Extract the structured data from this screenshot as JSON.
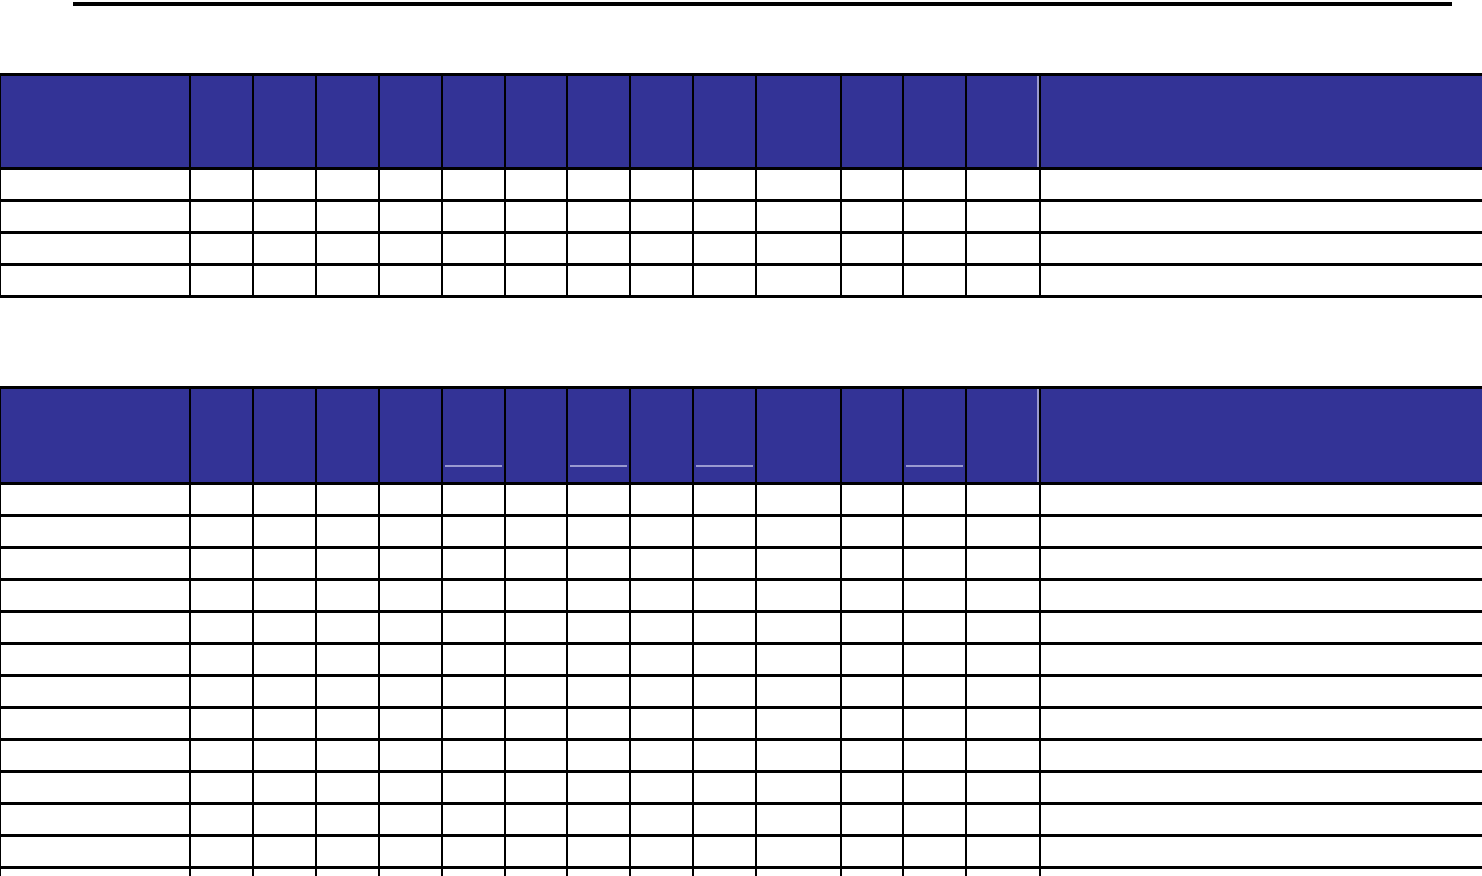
{
  "page": {
    "kind": "blank tabular form document",
    "visible_text": "",
    "top_rule": {
      "present": true
    }
  },
  "colors": {
    "header_fill": "#333396",
    "grid": "#000000",
    "accent": "#9a9ad0",
    "page_bg": "#ffffff"
  },
  "tables": [
    {
      "id": "upper-table",
      "columns": 15,
      "header_labels": [
        "",
        "",
        "",
        "",
        "",
        "",
        "",
        "",
        "",
        "",
        "",
        "",
        "",
        "",
        ""
      ],
      "body_rows": 4,
      "partial_last_row": false,
      "underline_columns": [],
      "divider_after_column": 14,
      "cell_text": ""
    },
    {
      "id": "lower-table",
      "columns": 15,
      "header_labels": [
        "",
        "",
        "",
        "",
        "",
        "",
        "",
        "",
        "",
        "",
        "",
        "",
        "",
        "",
        ""
      ],
      "body_rows": 13,
      "partial_last_row": true,
      "underline_columns": [
        6,
        8,
        10,
        13
      ],
      "divider_after_column": 14,
      "cell_text": ""
    }
  ]
}
